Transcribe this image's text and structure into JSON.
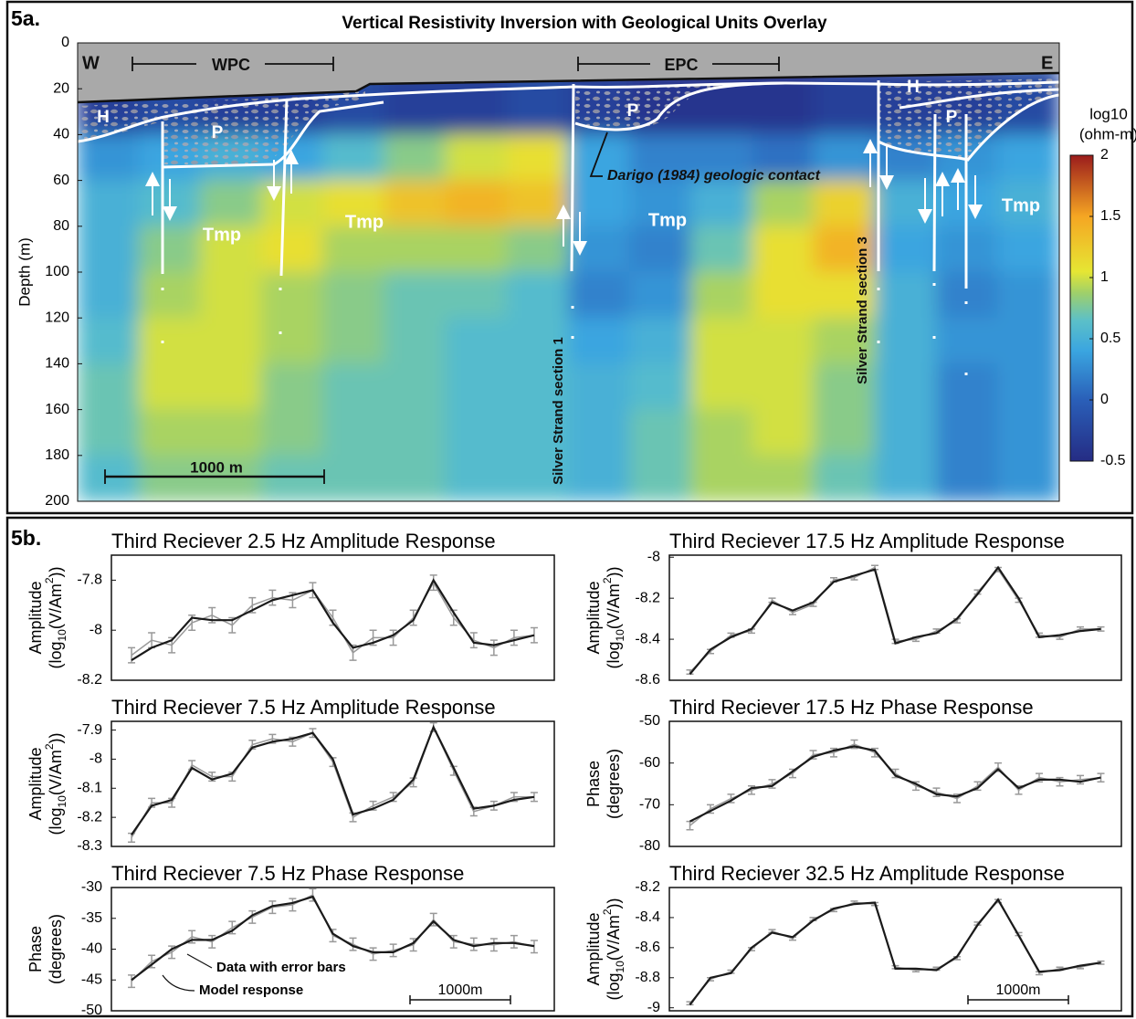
{
  "chart_data": [
    {
      "type": "heatmap",
      "panel": "5a.",
      "title": "Vertical Resistivity Inversion with Geological Units Overlay",
      "ylabel": "Depth (m)",
      "ylim": [
        200,
        0
      ],
      "yticks": [
        0,
        20,
        40,
        60,
        80,
        100,
        120,
        140,
        160,
        180,
        200
      ],
      "y_bins": [
        10,
        40,
        60,
        80,
        100,
        120,
        140,
        160,
        180,
        200
      ],
      "z": [
        [
          -0.3,
          -0.2,
          -0.3,
          -0.3,
          -0.2,
          -0.3,
          -0.3,
          -0.2,
          -0.3,
          -0.4,
          -0.4,
          -0.4,
          -0.3,
          -0.3,
          -0.3,
          -0.2
        ],
        [
          0.3,
          0.4,
          0.5,
          0.4,
          0.6,
          0.8,
          1.0,
          1.1,
          0.4,
          0.2,
          0.2,
          0.1,
          0.3,
          0.2,
          0.3,
          0.4
        ],
        [
          0.5,
          0.6,
          0.8,
          1.0,
          1.1,
          1.3,
          1.4,
          1.3,
          0.4,
          0.3,
          0.5,
          0.9,
          1.2,
          0.5,
          0.4,
          0.5
        ],
        [
          0.5,
          0.8,
          1.0,
          1.1,
          0.9,
          0.9,
          0.9,
          0.8,
          0.3,
          0.2,
          0.7,
          1.1,
          1.4,
          0.4,
          0.3,
          0.4
        ],
        [
          0.5,
          0.9,
          1.0,
          0.9,
          0.8,
          0.7,
          0.7,
          0.6,
          0.2,
          0.3,
          0.9,
          1.1,
          1.1,
          0.5,
          0.2,
          0.3
        ],
        [
          0.6,
          1.0,
          1.0,
          0.9,
          0.8,
          0.7,
          0.6,
          0.6,
          0.4,
          0.5,
          1.0,
          1.0,
          0.9,
          0.5,
          0.3,
          0.3
        ],
        [
          0.7,
          1.0,
          1.0,
          0.8,
          0.7,
          0.7,
          0.6,
          0.6,
          0.5,
          0.6,
          1.0,
          1.0,
          0.8,
          0.5,
          0.2,
          0.3
        ],
        [
          0.7,
          0.9,
          0.9,
          0.8,
          0.7,
          0.7,
          0.6,
          0.6,
          0.5,
          0.7,
          0.9,
          1.0,
          0.8,
          0.5,
          0.2,
          0.3
        ],
        [
          0.6,
          0.8,
          0.8,
          0.7,
          0.7,
          0.7,
          0.6,
          0.6,
          0.5,
          0.7,
          0.9,
          0.9,
          0.7,
          0.5,
          0.2,
          0.3
        ]
      ],
      "colorbar": {
        "label": [
          "log10",
          "(ohm-m)"
        ],
        "lim": [
          -0.5,
          2
        ],
        "ticks": [
          2,
          1.5,
          1,
          0.5,
          0,
          -0.5
        ]
      },
      "annotations": [
        "W",
        "E",
        "WPC",
        "EPC",
        "H",
        "P",
        "P",
        "H",
        "P",
        "Tmp",
        "Tmp",
        "Tmp",
        "Tmp",
        "Darigo  (1984) geologic contact",
        "Silver Strand section 1",
        "Silver Strand section 3",
        "1000 m"
      ]
    },
    {
      "type": "line",
      "panel": "5b.",
      "title": "Third Reciever 2.5 Hz Amplitude Response",
      "ylabel": [
        "Amplitude",
        [
          "(log",
          "10",
          "(V/Am",
          "2",
          "))"
        ]
      ],
      "x": [
        200,
        400,
        600,
        800,
        1000,
        1200,
        1400,
        1600,
        1800,
        2000,
        2200,
        2400,
        2600,
        2800,
        3000,
        3200,
        3400,
        3600,
        3800,
        4000,
        4200
      ],
      "xlim": [
        0,
        4400
      ],
      "ylim": [
        -8.2,
        -7.7
      ],
      "yticks": [
        -7.8,
        -8,
        -8.2
      ],
      "series": [
        {
          "color": "#999999",
          "values": [
            -8.1,
            -8.04,
            -8.06,
            -7.97,
            -7.94,
            -7.98,
            -7.9,
            -7.87,
            -7.88,
            -7.84,
            -7.95,
            -8.09,
            -8.03,
            -8.03,
            -7.95,
            -7.81,
            -7.95,
            -8.04,
            -8.07,
            -8.03,
            -8.02
          ],
          "errors": [
            0.03,
            0.03,
            0.03,
            0.03,
            0.03,
            0.03,
            0.03,
            0.03,
            0.03,
            0.03,
            0.03,
            0.03,
            0.03,
            0.03,
            0.03,
            0.03,
            0.03,
            0.03,
            0.03,
            0.03,
            0.03
          ]
        },
        {
          "color": "#1a1a1a",
          "values": [
            -8.12,
            -8.07,
            -8.04,
            -7.95,
            -7.96,
            -7.96,
            -7.92,
            -7.88,
            -7.86,
            -7.84,
            -7.97,
            -8.07,
            -8.05,
            -8.02,
            -7.96,
            -7.8,
            -7.93,
            -8.05,
            -8.06,
            -8.04,
            -8.02
          ]
        }
      ]
    },
    {
      "type": "line",
      "title": "Third Reciever 7.5 Hz Amplitude Response",
      "ylabel": [
        "Amplitude",
        [
          "(log",
          "10",
          "(V/Am",
          "2",
          "))"
        ]
      ],
      "x": [
        200,
        400,
        600,
        800,
        1000,
        1200,
        1400,
        1600,
        1800,
        2000,
        2200,
        2400,
        2600,
        2800,
        3000,
        3200,
        3400,
        3600,
        3800,
        4000,
        4200
      ],
      "xlim": [
        0,
        4400
      ],
      "ylim": [
        -8.3,
        -7.87
      ],
      "yticks": [
        -7.9,
        -8,
        -8.1,
        -8.2,
        -8.3
      ],
      "series": [
        {
          "color": "#999999",
          "values": [
            -8.27,
            -8.15,
            -8.15,
            -8.02,
            -8.06,
            -8.06,
            -7.95,
            -7.93,
            -7.94,
            -7.91,
            -8.01,
            -8.2,
            -8.16,
            -8.13,
            -8.08,
            -7.89,
            -8.04,
            -8.18,
            -8.16,
            -8.13,
            -8.13
          ],
          "errors": [
            0.015,
            0.015,
            0.015,
            0.015,
            0.015,
            0.015,
            0.015,
            0.015,
            0.015,
            0.015,
            0.015,
            0.015,
            0.015,
            0.015,
            0.015,
            0.015,
            0.015,
            0.015,
            0.015,
            0.015,
            0.015
          ]
        },
        {
          "color": "#1a1a1a",
          "values": [
            -8.26,
            -8.16,
            -8.14,
            -8.03,
            -8.07,
            -8.05,
            -7.96,
            -7.94,
            -7.93,
            -7.91,
            -8.0,
            -8.19,
            -8.17,
            -8.14,
            -8.07,
            -7.89,
            -8.03,
            -8.17,
            -8.16,
            -8.14,
            -8.13
          ]
        }
      ]
    },
    {
      "type": "line",
      "title": "Third Reciever 7.5 Hz Phase Response",
      "ylabel": [
        "Phase",
        "(degrees)"
      ],
      "x": [
        200,
        400,
        600,
        800,
        1000,
        1200,
        1400,
        1600,
        1800,
        2000,
        2200,
        2400,
        2600,
        2800,
        3000,
        3200,
        3400,
        3600,
        3800,
        4000,
        4200
      ],
      "xlim": [
        0,
        4400
      ],
      "ylim": [
        -50,
        -30
      ],
      "yticks": [
        -30,
        -35,
        -40,
        -45,
        -50
      ],
      "scale_bar": "1000m",
      "series": [
        {
          "name": "Data with error bars",
          "color": "#999999",
          "values": [
            -45.2,
            -42,
            -40.5,
            -38,
            -38.8,
            -36.5,
            -34.8,
            -33.2,
            -32.8,
            -31.2,
            -37.8,
            -39.2,
            -40.8,
            -40.2,
            -39.3,
            -35.2,
            -38.8,
            -39.2,
            -39.3,
            -38.8,
            -39.6
          ],
          "errors": [
            1,
            1,
            1,
            1,
            1,
            1,
            1,
            1,
            1,
            1,
            1,
            1,
            1,
            1,
            1,
            1,
            1,
            1,
            1,
            1,
            1
          ]
        },
        {
          "name": "Model response",
          "color": "#1a1a1a",
          "values": [
            -45,
            -42.5,
            -40,
            -38.5,
            -38.5,
            -37,
            -34.5,
            -33,
            -32.5,
            -31.5,
            -37.5,
            -39.5,
            -40.5,
            -40.5,
            -39,
            -35.5,
            -38.5,
            -39.5,
            -39,
            -39,
            -39.5
          ]
        }
      ]
    },
    {
      "type": "line",
      "title": "Third Reciever 17.5 Hz Amplitude Response",
      "ylabel": [
        "Amplitude",
        [
          "(log",
          "10",
          "(V/Am",
          "2",
          "))"
        ]
      ],
      "x": [
        200,
        400,
        600,
        800,
        1000,
        1200,
        1400,
        1600,
        1800,
        2000,
        2200,
        2400,
        2600,
        2800,
        3000,
        3200,
        3400,
        3600,
        3800,
        4000,
        4200
      ],
      "xlim": [
        0,
        4400
      ],
      "ylim": [
        -8.6,
        -7.99
      ],
      "yticks": [
        -8,
        -8.2,
        -8.4,
        -8.6
      ],
      "series": [
        {
          "color": "#999999",
          "values": [
            -8.56,
            -8.46,
            -8.38,
            -8.36,
            -8.21,
            -8.27,
            -8.23,
            -8.11,
            -8.1,
            -8.05,
            -8.41,
            -8.4,
            -8.36,
            -8.31,
            -8.17,
            -8.06,
            -8.21,
            -8.38,
            -8.39,
            -8.35,
            -8.35
          ],
          "errors": [
            0.01,
            0.01,
            0.01,
            0.01,
            0.01,
            0.01,
            0.01,
            0.01,
            0.01,
            0.01,
            0.01,
            0.01,
            0.01,
            0.01,
            0.01,
            0.01,
            0.01,
            0.01,
            0.01,
            0.01,
            0.01
          ]
        },
        {
          "color": "#1a1a1a",
          "values": [
            -8.57,
            -8.45,
            -8.39,
            -8.35,
            -8.22,
            -8.26,
            -8.22,
            -8.12,
            -8.09,
            -8.06,
            -8.42,
            -8.39,
            -8.37,
            -8.3,
            -8.18,
            -8.05,
            -8.2,
            -8.39,
            -8.38,
            -8.36,
            -8.35
          ]
        }
      ]
    },
    {
      "type": "line",
      "title": "Third Reciever 17.5 Hz Phase Response",
      "ylabel": [
        "Phase",
        "(degrees)"
      ],
      "x": [
        200,
        400,
        600,
        800,
        1000,
        1200,
        1400,
        1600,
        1800,
        2000,
        2200,
        2400,
        2600,
        2800,
        3000,
        3200,
        3400,
        3600,
        3800,
        4000,
        4200
      ],
      "xlim": [
        0,
        4400
      ],
      "ylim": [
        -80,
        -50
      ],
      "yticks": [
        -50,
        -60,
        -70,
        -80
      ],
      "series": [
        {
          "color": "#999999",
          "values": [
            -75,
            -71,
            -68.5,
            -66.5,
            -65,
            -62.5,
            -58,
            -57.5,
            -55.5,
            -57.5,
            -62.5,
            -65.5,
            -67,
            -68.5,
            -65.5,
            -61,
            -66.5,
            -63.5,
            -64.5,
            -64,
            -63.5
          ],
          "errors": [
            1,
            1,
            1,
            1,
            1,
            1,
            1,
            1,
            1,
            1,
            1,
            1,
            1,
            1,
            1,
            1,
            1,
            1,
            1,
            1,
            1
          ]
        },
        {
          "color": "#1a1a1a",
          "values": [
            -74,
            -71.5,
            -69,
            -66,
            -65.5,
            -62,
            -58.5,
            -57,
            -56,
            -57,
            -63,
            -65,
            -67.5,
            -68,
            -66,
            -61.5,
            -66,
            -64,
            -64,
            -64.5,
            -63.5
          ]
        }
      ]
    },
    {
      "type": "line",
      "title": "Third Reciever 32.5 Hz Amplitude Response",
      "ylabel": [
        "Amplitude",
        [
          "(log",
          "10",
          "(V/Am",
          "2",
          "))"
        ]
      ],
      "x": [
        200,
        400,
        600,
        800,
        1000,
        1200,
        1400,
        1600,
        1800,
        2000,
        2200,
        2400,
        2600,
        2800,
        3000,
        3200,
        3400,
        3600,
        3800,
        4000,
        4200
      ],
      "xlim": [
        0,
        4400
      ],
      "ylim": [
        -9.02,
        -8.2
      ],
      "yticks": [
        -8.2,
        -8.4,
        -8.6,
        -8.8,
        -9
      ],
      "scale_bar": "1000m",
      "series": [
        {
          "color": "#999999",
          "values": [
            -8.97,
            -8.81,
            -8.76,
            -8.61,
            -8.49,
            -8.54,
            -8.41,
            -8.35,
            -8.3,
            -8.31,
            -8.73,
            -8.75,
            -8.74,
            -8.67,
            -8.44,
            -8.29,
            -8.51,
            -8.77,
            -8.74,
            -8.73,
            -8.7
          ],
          "errors": [
            0.01,
            0.01,
            0.01,
            0.01,
            0.01,
            0.01,
            0.01,
            0.01,
            0.01,
            0.01,
            0.01,
            0.01,
            0.01,
            0.01,
            0.01,
            0.01,
            0.01,
            0.01,
            0.01,
            0.01,
            0.01
          ]
        },
        {
          "color": "#1a1a1a",
          "values": [
            -8.98,
            -8.8,
            -8.77,
            -8.6,
            -8.5,
            -8.53,
            -8.42,
            -8.34,
            -8.31,
            -8.3,
            -8.74,
            -8.74,
            -8.75,
            -8.66,
            -8.45,
            -8.28,
            -8.52,
            -8.76,
            -8.75,
            -8.72,
            -8.7
          ]
        }
      ]
    }
  ]
}
